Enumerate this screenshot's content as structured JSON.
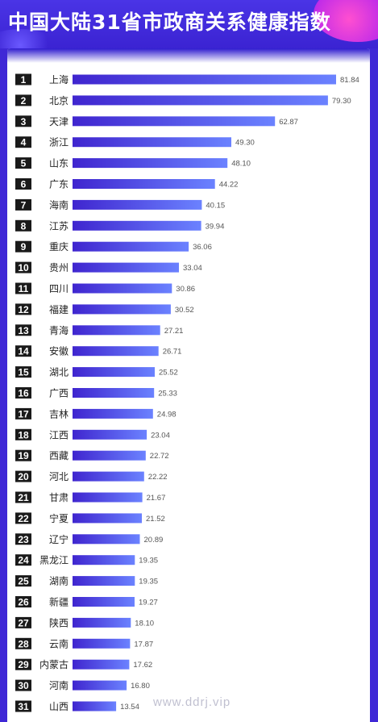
{
  "title": "中国大陆31省市政商关系健康指数",
  "watermark": "www.ddrj.vip",
  "colors": {
    "rank_box": "#1a1a1a",
    "bar_start": "#3f25cf",
    "bar_end": "#6b82ff",
    "value_text": "#555555",
    "label_text": "#222222",
    "header_bg": "#3f28d6"
  },
  "chart_data": {
    "type": "bar",
    "orientation": "horizontal",
    "title": "中国大陆31省市政商关系健康指数",
    "categories": [
      "上海",
      "北京",
      "天津",
      "浙江",
      "山东",
      "广东",
      "海南",
      "江苏",
      "重庆",
      "贵州",
      "四川",
      "福建",
      "青海",
      "安徽",
      "湖北",
      "广西",
      "吉林",
      "江西",
      "西藏",
      "河北",
      "甘肃",
      "宁夏",
      "辽宁",
      "黑龙江",
      "湖南",
      "新疆",
      "陕西",
      "云南",
      "内蒙古",
      "河南",
      "山西"
    ],
    "ranks": [
      1,
      2,
      3,
      4,
      5,
      6,
      7,
      8,
      9,
      10,
      11,
      12,
      13,
      14,
      15,
      16,
      17,
      18,
      19,
      20,
      21,
      22,
      23,
      24,
      25,
      26,
      27,
      28,
      29,
      30,
      31
    ],
    "values": [
      81.84,
      79.3,
      62.87,
      49.3,
      48.1,
      44.22,
      40.15,
      39.94,
      36.06,
      33.04,
      30.86,
      30.52,
      27.21,
      26.71,
      25.52,
      25.33,
      24.98,
      23.04,
      22.72,
      22.22,
      21.67,
      21.52,
      20.89,
      19.35,
      19.35,
      19.27,
      18.1,
      17.87,
      17.62,
      16.8,
      13.54
    ],
    "value_labels": [
      "81.84",
      "79.30",
      "62.87",
      "49.30",
      "48.10",
      "44.22",
      "40.15",
      "39.94",
      "36.06",
      "33.04",
      "30.86",
      "30.52",
      "27.21",
      "26.71",
      "25.52",
      "25.33",
      "24.98",
      "23.04",
      "22.72",
      "22.22",
      "21.67",
      "21.52",
      "20.89",
      "19.35",
      "19.35",
      "19.27",
      "18.10",
      "17.87",
      "17.62",
      "16.80",
      "13.54"
    ],
    "xlim": [
      0,
      81.84
    ],
    "grid": false,
    "legend": "none"
  }
}
